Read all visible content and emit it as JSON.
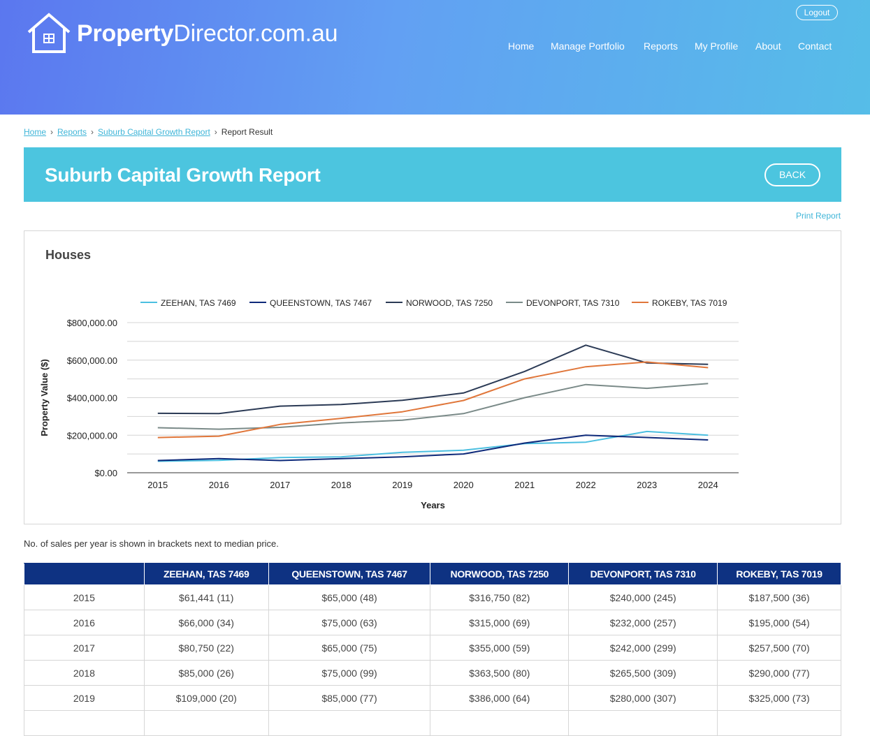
{
  "brand": {
    "bold": "Property",
    "light": "Director.com.au"
  },
  "header": {
    "logout_label": "Logout"
  },
  "nav": [
    {
      "label": "Home",
      "name": "nav-home"
    },
    {
      "label": "Manage Portfolio",
      "name": "nav-manage-portfolio"
    },
    {
      "label": "Reports",
      "name": "nav-reports"
    },
    {
      "label": "My Profile",
      "name": "nav-my-profile"
    },
    {
      "label": "About",
      "name": "nav-about"
    },
    {
      "label": "Contact",
      "name": "nav-contact"
    }
  ],
  "breadcrumb": {
    "home": "Home",
    "reports": "Reports",
    "report": "Suburb Capital Growth Report",
    "current": "Report Result"
  },
  "page": {
    "title": "Suburb Capital Growth Report",
    "back_label": "BACK",
    "print_label": "Print Report"
  },
  "chart_section_title": "Houses",
  "chart_data": {
    "type": "line",
    "x": [
      "2015",
      "2016",
      "2017",
      "2018",
      "2019",
      "2020",
      "2021",
      "2022",
      "2023",
      "2024"
    ],
    "xlabel": "Years",
    "ylabel": "Property Value ($)",
    "ylim": [
      0,
      800000
    ],
    "yticks": [
      "$0.00",
      "$200,000.00",
      "$400,000.00",
      "$600,000.00",
      "$800,000.00"
    ],
    "grid": true,
    "legend": "top",
    "series": [
      {
        "name": "ZEEHAN, TAS 7469",
        "color": "#4bbfe0",
        "values": [
          61441,
          66000,
          80750,
          85000,
          109000,
          120000,
          155000,
          163000,
          220000,
          200000
        ]
      },
      {
        "name": "QUEENSTOWN, TAS 7467",
        "color": "#0e2a7a",
        "values": [
          65000,
          75000,
          65000,
          75000,
          85000,
          100000,
          158000,
          200000,
          188000,
          175000
        ]
      },
      {
        "name": "NORWOOD, TAS 7250",
        "color": "#2b3a55",
        "values": [
          316750,
          315000,
          355000,
          363500,
          386000,
          425000,
          540000,
          680000,
          585000,
          578000
        ]
      },
      {
        "name": "DEVONPORT, TAS 7310",
        "color": "#7a8a88",
        "values": [
          240000,
          232000,
          242000,
          265500,
          280000,
          315000,
          400000,
          470000,
          450000,
          475000
        ]
      },
      {
        "name": "ROKEBY, TAS 7019",
        "color": "#e0763a",
        "values": [
          187500,
          195000,
          257500,
          290000,
          325000,
          385000,
          500000,
          565000,
          590000,
          560000
        ]
      }
    ]
  },
  "note": "No. of sales per year is shown in brackets next to median price.",
  "table": {
    "headers": [
      "",
      "ZEEHAN, TAS 7469",
      "QUEENSTOWN, TAS 7467",
      "NORWOOD, TAS 7250",
      "DEVONPORT, TAS 7310",
      "ROKEBY, TAS 7019"
    ],
    "rows": [
      [
        "2015",
        "$61,441 (11)",
        "$65,000 (48)",
        "$316,750 (82)",
        "$240,000 (245)",
        "$187,500 (36)"
      ],
      [
        "2016",
        "$66,000 (34)",
        "$75,000 (63)",
        "$315,000 (69)",
        "$232,000 (257)",
        "$195,000 (54)"
      ],
      [
        "2017",
        "$80,750 (22)",
        "$65,000 (75)",
        "$355,000 (59)",
        "$242,000 (299)",
        "$257,500 (70)"
      ],
      [
        "2018",
        "$85,000 (26)",
        "$75,000 (99)",
        "$363,500 (80)",
        "$265,500 (309)",
        "$290,000 (77)"
      ],
      [
        "2019",
        "$109,000 (20)",
        "$85,000 (77)",
        "$386,000 (64)",
        "$280,000 (307)",
        "$325,000 (73)"
      ],
      [
        "",
        "",
        "",
        "",
        "",
        ""
      ]
    ]
  }
}
